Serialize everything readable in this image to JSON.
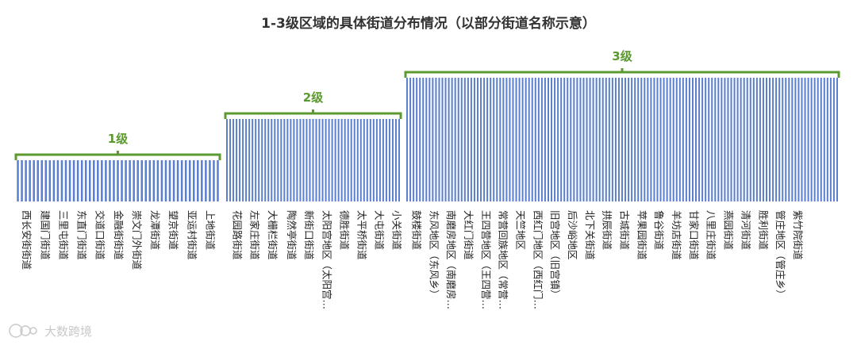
{
  "chart_data": {
    "type": "bar",
    "title": "1-3级区域的具体街道分布情况（以部分街道名称示意）",
    "xlabel": "",
    "ylabel": "",
    "grid": false,
    "legend": "none",
    "bar_color": "#5b7fcf",
    "bracket_color": "#5b9a2e",
    "ylim": [
      0,
      3.5
    ],
    "tiers": [
      {
        "label": "1级",
        "value": 1,
        "count": 51
      },
      {
        "label": "2级",
        "value": 2,
        "count": 55
      },
      {
        "label": "3级",
        "value": 3,
        "count": 135
      }
    ],
    "tick_labels": [
      {
        "tier": 0,
        "frac": 0.02,
        "text": "西长安街街道"
      },
      {
        "tier": 0,
        "frac": 0.11,
        "text": "建国门街道"
      },
      {
        "tier": 0,
        "frac": 0.2,
        "text": "三里屯街道"
      },
      {
        "tier": 0,
        "frac": 0.29,
        "text": "东直门街道"
      },
      {
        "tier": 0,
        "frac": 0.38,
        "text": "交道口街道"
      },
      {
        "tier": 0,
        "frac": 0.47,
        "text": "金融街街道"
      },
      {
        "tier": 0,
        "frac": 0.56,
        "text": "崇文门外街道"
      },
      {
        "tier": 0,
        "frac": 0.65,
        "text": "龙潭街道"
      },
      {
        "tier": 0,
        "frac": 0.74,
        "text": "望京街道"
      },
      {
        "tier": 0,
        "frac": 0.83,
        "text": "亚运村街道"
      },
      {
        "tier": 0,
        "frac": 0.92,
        "text": "上地街道"
      },
      {
        "tier": 1,
        "frac": 0.03,
        "text": "花园路街道"
      },
      {
        "tier": 1,
        "frac": 0.13,
        "text": "左家庄街道"
      },
      {
        "tier": 1,
        "frac": 0.23,
        "text": "大栅栏街道"
      },
      {
        "tier": 1,
        "frac": 0.34,
        "text": "陶然亭街道"
      },
      {
        "tier": 1,
        "frac": 0.44,
        "text": "新街口街道"
      },
      {
        "tier": 1,
        "frac": 0.54,
        "text": "太阳宫地区（太阳宫…"
      },
      {
        "tier": 1,
        "frac": 0.64,
        "text": "德胜街道"
      },
      {
        "tier": 1,
        "frac": 0.74,
        "text": "太平桥街道"
      },
      {
        "tier": 1,
        "frac": 0.84,
        "text": "大屯街道"
      },
      {
        "tier": 1,
        "frac": 0.94,
        "text": "小关街道"
      },
      {
        "tier": 2,
        "frac": 0.01,
        "text": "鼓楼街道"
      },
      {
        "tier": 2,
        "frac": 0.05,
        "text": "东风地区（东风乡）"
      },
      {
        "tier": 2,
        "frac": 0.09,
        "text": "南磨房地区（南磨房…"
      },
      {
        "tier": 2,
        "frac": 0.13,
        "text": "大红门街道"
      },
      {
        "tier": 2,
        "frac": 0.17,
        "text": "王四营地区（王四营…"
      },
      {
        "tier": 2,
        "frac": 0.21,
        "text": "常营回族地区（常营…"
      },
      {
        "tier": 2,
        "frac": 0.25,
        "text": "天竺地区"
      },
      {
        "tier": 2,
        "frac": 0.29,
        "text": "西红门地区（西红门…"
      },
      {
        "tier": 2,
        "frac": 0.33,
        "text": "旧宫地区（旧宫镇）"
      },
      {
        "tier": 2,
        "frac": 0.37,
        "text": "后沙峪地区"
      },
      {
        "tier": 2,
        "frac": 0.41,
        "text": "北下关街道"
      },
      {
        "tier": 2,
        "frac": 0.45,
        "text": "拱辰街道"
      },
      {
        "tier": 2,
        "frac": 0.49,
        "text": "古城街道"
      },
      {
        "tier": 2,
        "frac": 0.53,
        "text": "苹果园街道"
      },
      {
        "tier": 2,
        "frac": 0.57,
        "text": "鲁谷街道"
      },
      {
        "tier": 2,
        "frac": 0.61,
        "text": "羊坊店街道"
      },
      {
        "tier": 2,
        "frac": 0.65,
        "text": "甘家口街道"
      },
      {
        "tier": 2,
        "frac": 0.69,
        "text": "八里庄街道"
      },
      {
        "tier": 2,
        "frac": 0.73,
        "text": "燕园街道"
      },
      {
        "tier": 2,
        "frac": 0.77,
        "text": "清河街道"
      },
      {
        "tier": 2,
        "frac": 0.81,
        "text": "胜利街道"
      },
      {
        "tier": 2,
        "frac": 0.85,
        "text": "管庄地区（管庄乡）"
      },
      {
        "tier": 2,
        "frac": 0.89,
        "text": "紫竹院街道"
      }
    ]
  },
  "watermark": {
    "text": "大数跨境",
    "icon": "tiger-logo-icon"
  }
}
